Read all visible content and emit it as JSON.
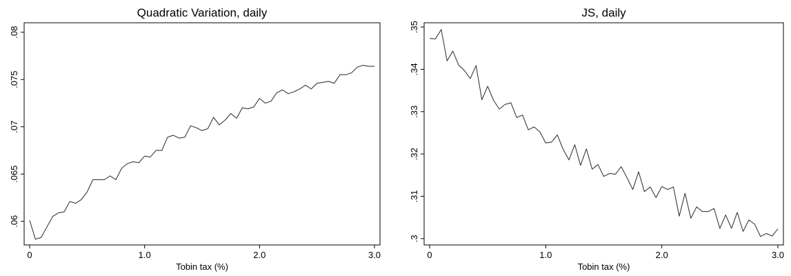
{
  "chart_data": [
    {
      "type": "line",
      "title": "Quadratic Variation, daily",
      "xlabel": "Tobin tax (%)",
      "ylabel": "",
      "xlim": [
        0,
        3.0
      ],
      "ylim": [
        0.0575,
        0.081
      ],
      "xticks": [
        0,
        1.0,
        2.0,
        3.0
      ],
      "xtick_labels": [
        "0",
        "1.0",
        "2.0",
        "3.0"
      ],
      "yticks": [
        0.06,
        0.065,
        0.07,
        0.075,
        0.08
      ],
      "ytick_labels": [
        ".06",
        ".065",
        ".07",
        ".075",
        ".08"
      ],
      "grid": false,
      "series": [
        {
          "x": [
            0,
            0.05,
            0.1,
            0.15,
            0.2,
            0.25,
            0.3,
            0.35,
            0.4,
            0.45,
            0.5,
            0.55,
            0.6,
            0.65,
            0.7,
            0.75,
            0.8,
            0.85,
            0.9,
            0.95,
            1.0,
            1.05,
            1.1,
            1.15,
            1.2,
            1.25,
            1.3,
            1.35,
            1.4,
            1.45,
            1.5,
            1.55,
            1.6,
            1.65,
            1.7,
            1.75,
            1.8,
            1.85,
            1.9,
            1.95,
            2.0,
            2.05,
            2.1,
            2.15,
            2.2,
            2.25,
            2.3,
            2.35,
            2.4,
            2.45,
            2.5,
            2.55,
            2.6,
            2.65,
            2.7,
            2.75,
            2.8,
            2.85,
            2.9,
            2.95,
            3.0
          ],
          "values": [
            0.0601,
            0.0581,
            0.0583,
            0.0594,
            0.0605,
            0.0609,
            0.061,
            0.0621,
            0.0619,
            0.0623,
            0.0631,
            0.0644,
            0.0644,
            0.0644,
            0.0648,
            0.0644,
            0.0656,
            0.0661,
            0.0663,
            0.0662,
            0.0669,
            0.0668,
            0.0675,
            0.0675,
            0.0689,
            0.0691,
            0.0688,
            0.0689,
            0.0701,
            0.0699,
            0.0696,
            0.0698,
            0.071,
            0.0702,
            0.0707,
            0.0714,
            0.0709,
            0.072,
            0.0719,
            0.0721,
            0.073,
            0.0725,
            0.0727,
            0.0736,
            0.0739,
            0.0735,
            0.0737,
            0.074,
            0.0744,
            0.074,
            0.0746,
            0.0747,
            0.0748,
            0.0746,
            0.0755,
            0.0755,
            0.0757,
            0.0763,
            0.0765,
            0.0764,
            0.0764
          ]
        }
      ]
    },
    {
      "type": "line",
      "title": "JS, daily",
      "xlabel": "Tobin tax (%)",
      "ylabel": "",
      "xlim": [
        0,
        3.0
      ],
      "ylim": [
        0.2985,
        0.351
      ],
      "xticks": [
        0,
        1.0,
        2.0,
        3.0
      ],
      "xtick_labels": [
        "0",
        "1.0",
        "2.0",
        "3.0"
      ],
      "yticks": [
        0.3,
        0.31,
        0.32,
        0.33,
        0.34,
        0.35
      ],
      "ytick_labels": [
        ".3",
        ".31",
        ".32",
        ".33",
        ".34",
        ".35"
      ],
      "grid": false,
      "series": [
        {
          "x": [
            0,
            0.05,
            0.1,
            0.15,
            0.2,
            0.25,
            0.3,
            0.35,
            0.4,
            0.45,
            0.5,
            0.55,
            0.6,
            0.65,
            0.7,
            0.75,
            0.8,
            0.85,
            0.9,
            0.95,
            1.0,
            1.05,
            1.1,
            1.15,
            1.2,
            1.25,
            1.3,
            1.35,
            1.4,
            1.45,
            1.5,
            1.55,
            1.6,
            1.65,
            1.7,
            1.75,
            1.8,
            1.85,
            1.9,
            1.95,
            2.0,
            2.05,
            2.1,
            2.15,
            2.2,
            2.25,
            2.3,
            2.35,
            2.4,
            2.45,
            2.5,
            2.55,
            2.6,
            2.65,
            2.7,
            2.75,
            2.8,
            2.85,
            2.9,
            2.95,
            3.0
          ],
          "values": [
            0.3473,
            0.3472,
            0.3494,
            0.342,
            0.3443,
            0.341,
            0.3397,
            0.3378,
            0.3409,
            0.3328,
            0.336,
            0.3327,
            0.3306,
            0.3317,
            0.3321,
            0.3286,
            0.3292,
            0.3257,
            0.3264,
            0.3252,
            0.3226,
            0.3228,
            0.3245,
            0.3211,
            0.3186,
            0.3222,
            0.3173,
            0.3212,
            0.3164,
            0.3175,
            0.3147,
            0.3154,
            0.3152,
            0.317,
            0.3144,
            0.3116,
            0.3158,
            0.3111,
            0.3122,
            0.3097,
            0.3123,
            0.3116,
            0.3122,
            0.3053,
            0.3107,
            0.3048,
            0.3075,
            0.3064,
            0.3064,
            0.3071,
            0.3024,
            0.3056,
            0.3024,
            0.3062,
            0.3017,
            0.3044,
            0.3034,
            0.3005,
            0.3012,
            0.3006,
            0.3023
          ]
        }
      ]
    }
  ]
}
